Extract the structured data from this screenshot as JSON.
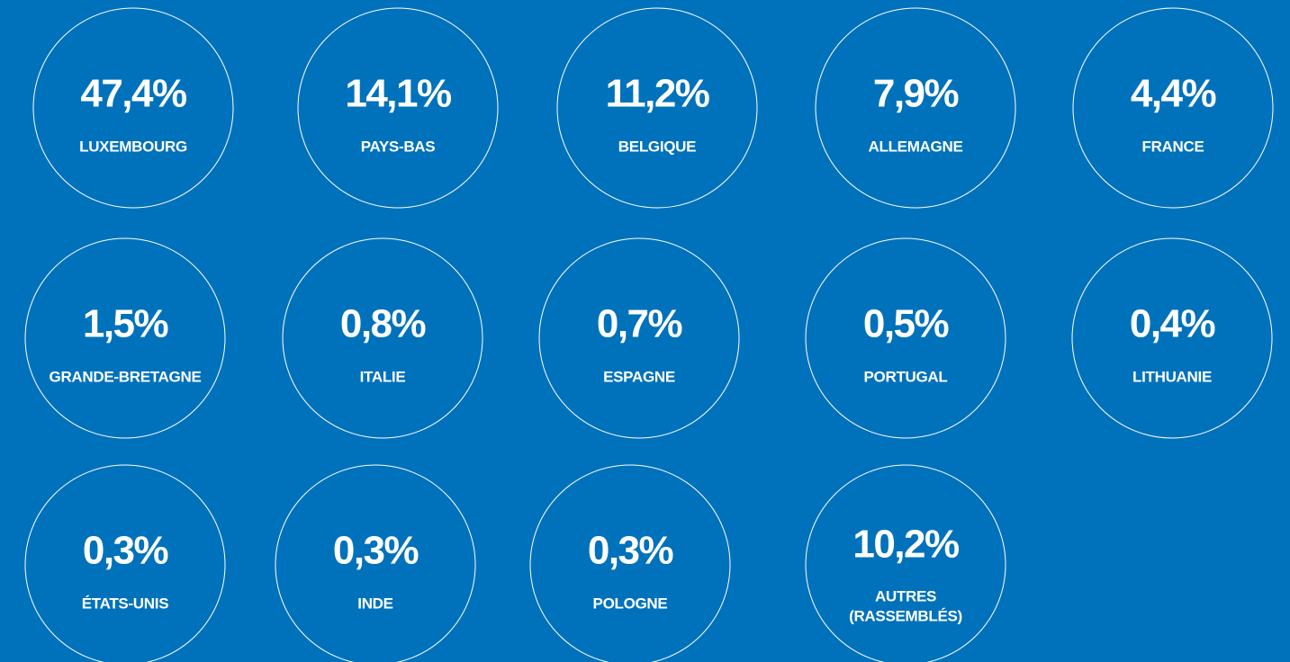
{
  "items": [
    {
      "value": "47,4%",
      "label": "LUXEMBOURG"
    },
    {
      "value": "14,1%",
      "label": "PAYS-BAS"
    },
    {
      "value": "11,2%",
      "label": "BELGIQUE"
    },
    {
      "value": "7,9%",
      "label": "ALLEMAGNE"
    },
    {
      "value": "4,4%",
      "label": "FRANCE"
    },
    {
      "value": "1,5%",
      "label": "GRANDE-BRETAGNE"
    },
    {
      "value": "0,8%",
      "label": "ITALIE"
    },
    {
      "value": "0,7%",
      "label": "ESPAGNE"
    },
    {
      "value": "0,5%",
      "label": "PORTUGAL"
    },
    {
      "value": "0,4%",
      "label": "LITHUANIE"
    },
    {
      "value": "0,3%",
      "label": "ÉTATS-UNIS"
    },
    {
      "value": "0,3%",
      "label": "INDE"
    },
    {
      "value": "0,3%",
      "label": "POLOGNE"
    },
    {
      "value": "10,2%",
      "label": [
        "AUTRES",
        "(RASSEMBLÉS)"
      ]
    }
  ]
}
